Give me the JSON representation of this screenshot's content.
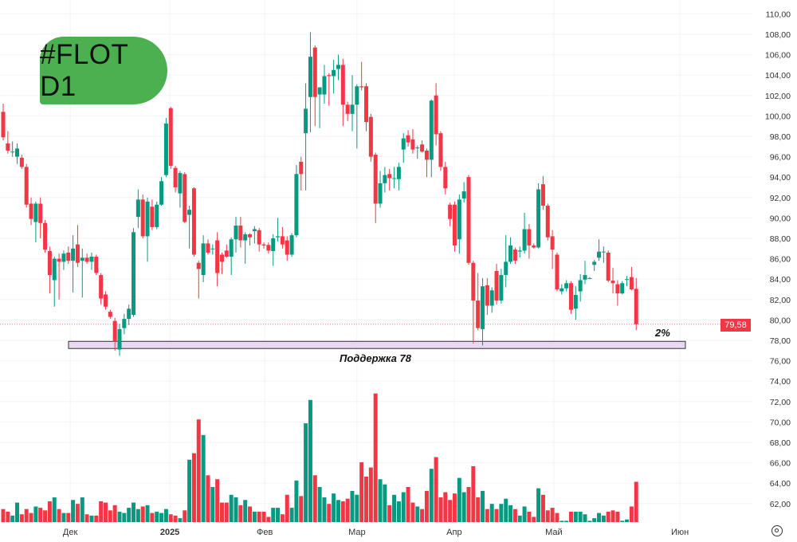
{
  "badge": {
    "text": "#FLOT D1",
    "color": "#4caf50"
  },
  "annotations": {
    "support_label": "Поддержка 78",
    "percent_label": "2%",
    "current_price_label": "79,58"
  },
  "colors": {
    "up": "#089981",
    "down": "#f23645",
    "support_fill": "#ead8f2",
    "support_border": "#333333",
    "grid": "#f0f3fa"
  },
  "chart_data": {
    "type": "candlestick",
    "title": "",
    "support_zone": {
      "low": 77.2,
      "high": 77.9,
      "level": 78
    },
    "current_price": 79.58,
    "y_ticks": [
      110,
      108,
      106,
      104,
      102,
      100,
      98,
      96,
      94,
      92,
      90,
      88,
      86,
      84,
      82,
      80,
      78,
      76,
      74,
      72,
      70,
      68,
      66,
      64,
      62
    ],
    "y_tick_labels": [
      "110,00",
      "108,00",
      "106,00",
      "104,00",
      "102,00",
      "100,00",
      "98,00",
      "96,00",
      "94,00",
      "92,00",
      "90,00",
      "88,00",
      "86,00",
      "84,00",
      "82,00",
      "80,00",
      "78,00",
      "76,00",
      "74,00",
      "72,00",
      "70,00",
      "68,00",
      "66,00",
      "64,00",
      "62,00"
    ],
    "x_tick_labels": [
      "Дек",
      "2025",
      "Фев",
      "Мар",
      "Апр",
      "Май",
      "Июн"
    ],
    "candles_ohlc": [
      [
        100.4,
        101.2,
        97.6,
        97.9
      ],
      [
        97.3,
        98.5,
        96.3,
        96.6
      ],
      [
        96.5,
        97.5,
        96.0,
        96.5
      ],
      [
        96.0,
        97.3,
        95.3,
        96.8
      ],
      [
        95.9,
        96.2,
        94.8,
        95.0
      ],
      [
        95.0,
        95.3,
        91.0,
        91.3
      ],
      [
        91.4,
        92.0,
        89.3,
        89.9
      ],
      [
        89.6,
        91.6,
        87.6,
        91.4
      ],
      [
        91.4,
        92.0,
        88.0,
        89.5
      ],
      [
        89.5,
        89.8,
        86.6,
        86.9
      ],
      [
        86.75,
        87.2,
        82.6,
        84.4
      ],
      [
        83.9,
        86.2,
        81.3,
        86.0
      ],
      [
        86.0,
        86.5,
        82.0,
        85.7
      ],
      [
        85.7,
        86.8,
        84.9,
        86.5
      ],
      [
        86.6,
        87.2,
        85.5,
        85.8
      ],
      [
        85.8,
        88.3,
        82.7,
        87.0
      ],
      [
        87.4,
        89.3,
        85.2,
        85.6
      ],
      [
        85.8,
        87.0,
        82.2,
        86.1
      ],
      [
        86.1,
        86.5,
        85.5,
        85.7
      ],
      [
        85.7,
        86.6,
        84.9,
        86.2
      ],
      [
        86.2,
        86.4,
        84.4,
        84.6
      ],
      [
        84.4,
        84.6,
        81.5,
        82.1
      ],
      [
        82.5,
        82.8,
        81.0,
        81.3
      ],
      [
        80.8,
        81.0,
        80.1,
        80.3
      ],
      [
        79.9,
        80.2,
        77.0,
        77.9
      ],
      [
        77.1,
        79.6,
        76.5,
        79.1
      ],
      [
        79.2,
        80.6,
        78.6,
        80.1
      ],
      [
        80.1,
        81.5,
        79.5,
        81.1
      ],
      [
        80.5,
        89.0,
        80.3,
        88.6
      ],
      [
        90.1,
        92.8,
        89.0,
        91.8
      ],
      [
        91.8,
        92.3,
        88.0,
        88.2
      ],
      [
        88.2,
        92.0,
        85.7,
        91.6
      ],
      [
        91.1,
        91.8,
        88.8,
        89.1
      ],
      [
        89.1,
        91.6,
        88.9,
        91.3
      ],
      [
        91.3,
        94.0,
        91.2,
        93.6
      ],
      [
        94.2,
        99.8,
        94.0,
        99.25
      ],
      [
        100.75,
        100.9,
        94.8,
        95.1
      ],
      [
        94.9,
        95.1,
        92.5,
        93.0
      ],
      [
        92.4,
        94.6,
        91.0,
        94.4
      ],
      [
        94.3,
        94.5,
        89.5,
        89.6
      ],
      [
        90.3,
        91.2,
        87.0,
        90.8
      ],
      [
        92.9,
        93.0,
        86.2,
        86.4
      ],
      [
        85.6,
        85.8,
        82.1,
        85.0
      ],
      [
        84.4,
        88.3,
        83.7,
        87.5
      ],
      [
        87.5,
        87.9,
        86.4,
        86.6
      ],
      [
        87.0,
        87.4,
        86.4,
        87.0
      ],
      [
        87.8,
        88.6,
        83.3,
        84.6
      ],
      [
        86.4,
        86.6,
        84.5,
        85.7
      ],
      [
        86.8,
        87.4,
        86.1,
        86.2
      ],
      [
        86.2,
        88.1,
        84.4,
        87.9
      ],
      [
        87.9,
        90.1,
        86.6,
        89.25
      ],
      [
        89.25,
        90.1,
        87.1,
        87.8
      ],
      [
        87.8,
        88.6,
        85.5,
        88.4
      ],
      [
        88.4,
        88.5,
        87.3,
        88.1
      ],
      [
        88.7,
        89.2,
        87.5,
        88.9
      ],
      [
        88.8,
        89.0,
        86.7,
        87.4
      ],
      [
        87.4,
        87.6,
        87.0,
        87.3
      ],
      [
        87.35,
        87.6,
        86.5,
        86.8
      ],
      [
        86.75,
        88.4,
        85.3,
        88.0
      ],
      [
        88.1,
        90.0,
        87.7,
        88.2
      ],
      [
        88.2,
        89.1,
        87.0,
        87.4
      ],
      [
        87.8,
        88.2,
        85.8,
        86.4
      ],
      [
        86.4,
        88.5,
        86.2,
        88.3
      ],
      [
        88.3,
        95.2,
        88.1,
        94.3
      ],
      [
        95.5,
        96.0,
        92.7,
        94.3
      ],
      [
        98.3,
        103.2,
        92.7,
        100.7
      ],
      [
        101.85,
        108.2,
        98.4,
        105.8
      ],
      [
        106.7,
        106.9,
        99.0,
        101.85
      ],
      [
        102.1,
        102.8,
        98.8,
        102.8
      ],
      [
        102.1,
        105.0,
        101.2,
        103.9
      ],
      [
        104.0,
        104.2,
        101.0,
        103.9
      ],
      [
        103.9,
        105.5,
        102.2,
        104.5
      ],
      [
        104.6,
        106.0,
        103.5,
        105.0
      ],
      [
        105.0,
        105.6,
        99.0,
        101.1
      ],
      [
        101.1,
        101.4,
        99.5,
        100.2
      ],
      [
        100.2,
        104.0,
        98.5,
        101.1
      ],
      [
        101.1,
        103.1,
        96.8,
        102.9
      ],
      [
        102.9,
        105.3,
        102.5,
        102.8
      ],
      [
        102.9,
        103.2,
        98.5,
        99.4
      ],
      [
        99.9,
        100.2,
        95.5,
        96.0
      ],
      [
        96.2,
        96.4,
        89.5,
        91.4
      ],
      [
        91.4,
        94.6,
        91.0,
        93.4
      ],
      [
        93.4,
        95.0,
        92.5,
        94.2
      ],
      [
        94.3,
        94.8,
        92.7,
        93.9
      ],
      [
        93.9,
        95.0,
        92.9,
        93.9
      ],
      [
        93.8,
        95.4,
        92.7,
        95.0
      ],
      [
        96.7,
        98.3,
        95.4,
        97.8
      ],
      [
        98.1,
        98.6,
        97.0,
        97.4
      ],
      [
        97.7,
        98.7,
        96.3,
        96.7
      ],
      [
        96.9,
        97.1,
        95.8,
        96.9
      ],
      [
        97.2,
        97.6,
        96.4,
        96.5
      ],
      [
        96.6,
        96.8,
        94.0,
        95.7
      ],
      [
        95.7,
        101.6,
        94.0,
        101.5
      ],
      [
        102.0,
        103.2,
        97.1,
        98.2
      ],
      [
        98.3,
        98.5,
        94.6,
        95.0
      ],
      [
        95.0,
        95.5,
        92.3,
        92.9
      ],
      [
        91.3,
        91.5,
        89.2,
        89.9
      ],
      [
        91.3,
        91.6,
        86.7,
        87.3
      ],
      [
        87.9,
        92.3,
        86.5,
        91.8
      ],
      [
        91.9,
        93.5,
        91.5,
        92.6
      ],
      [
        94.0,
        94.2,
        85.4,
        85.6
      ],
      [
        85.6,
        85.8,
        77.7,
        81.9
      ],
      [
        81.9,
        84.6,
        79.0,
        79.2
      ],
      [
        79.1,
        84.1,
        77.5,
        83.3
      ],
      [
        83.4,
        84.1,
        80.5,
        81.4
      ],
      [
        81.4,
        83.2,
        80.7,
        82.9
      ],
      [
        84.8,
        85.5,
        81.5,
        81.9
      ],
      [
        81.9,
        85.0,
        81.6,
        84.4
      ],
      [
        84.4,
        88.3,
        83.2,
        85.7
      ],
      [
        85.7,
        88.1,
        85.5,
        87.3
      ],
      [
        86.9,
        87.1,
        85.5,
        85.8
      ],
      [
        86.7,
        87.2,
        86.1,
        86.8
      ],
      [
        86.8,
        90.5,
        86.5,
        88.9
      ],
      [
        88.9,
        89.4,
        86.0,
        87.3
      ],
      [
        87.3,
        87.5,
        87.0,
        87.1
      ],
      [
        87.1,
        93.4,
        87.0,
        92.8
      ],
      [
        93.3,
        94.1,
        90.8,
        91.2
      ],
      [
        91.2,
        91.4,
        87.8,
        88.1
      ],
      [
        88.2,
        88.8,
        85.0,
        86.9
      ],
      [
        86.4,
        86.6,
        82.8,
        83.0
      ],
      [
        82.8,
        83.5,
        82.5,
        83.1
      ],
      [
        83.1,
        83.9,
        82.8,
        83.6
      ],
      [
        83.6,
        83.8,
        80.6,
        81.0
      ],
      [
        81.1,
        83.3,
        80.0,
        82.45
      ],
      [
        82.8,
        84.5,
        81.8,
        83.9
      ],
      [
        83.95,
        85.8,
        83.5,
        84.4
      ],
      [
        84.1,
        84.2,
        84.0,
        84.1
      ],
      [
        85.4,
        85.9,
        84.8,
        85.7
      ],
      [
        86.1,
        87.9,
        85.8,
        86.7
      ],
      [
        86.7,
        87.2,
        85.6,
        86.7
      ],
      [
        86.6,
        86.8,
        83.7,
        83.85
      ],
      [
        83.85,
        85.1,
        82.6,
        83.6
      ],
      [
        83.5,
        83.9,
        81.4,
        82.6
      ],
      [
        82.6,
        83.8,
        82.5,
        83.6
      ],
      [
        84.0,
        84.3,
        83.3,
        84.0
      ],
      [
        84.2,
        85.2,
        82.9,
        83.0
      ],
      [
        83.05,
        84.1,
        79.0,
        79.58
      ]
    ],
    "volume_relative": [
      10,
      8,
      5,
      15,
      6,
      10,
      7,
      12,
      11,
      9,
      16,
      19,
      10,
      7,
      7,
      17,
      14,
      19,
      6,
      5,
      5,
      16,
      15,
      9,
      13,
      8,
      7,
      11,
      15,
      10,
      12,
      13,
      7,
      8,
      7,
      10,
      6,
      5,
      3,
      9,
      48,
      53,
      79,
      67,
      36,
      27,
      33,
      15,
      15,
      21,
      19,
      13,
      17,
      12,
      8,
      8,
      8,
      4,
      11,
      11,
      6,
      21,
      11,
      32,
      20,
      76,
      94,
      36,
      27,
      19,
      14,
      22,
      17,
      16,
      18,
      24,
      21,
      46,
      35,
      42,
      99,
      33,
      29,
      13,
      21,
      16,
      23,
      27,
      15,
      12,
      10,
      24,
      41,
      50,
      19,
      23,
      17,
      22,
      34,
      23,
      27,
      43,
      19,
      24,
      10,
      14,
      10,
      14,
      18,
      13,
      10,
      5,
      12,
      8,
      4,
      26,
      21,
      9,
      11,
      7,
      1,
      1,
      8,
      8,
      8,
      6,
      1,
      3,
      7,
      5,
      8,
      9,
      8,
      1,
      2,
      12,
      31
    ],
    "grid": true
  }
}
